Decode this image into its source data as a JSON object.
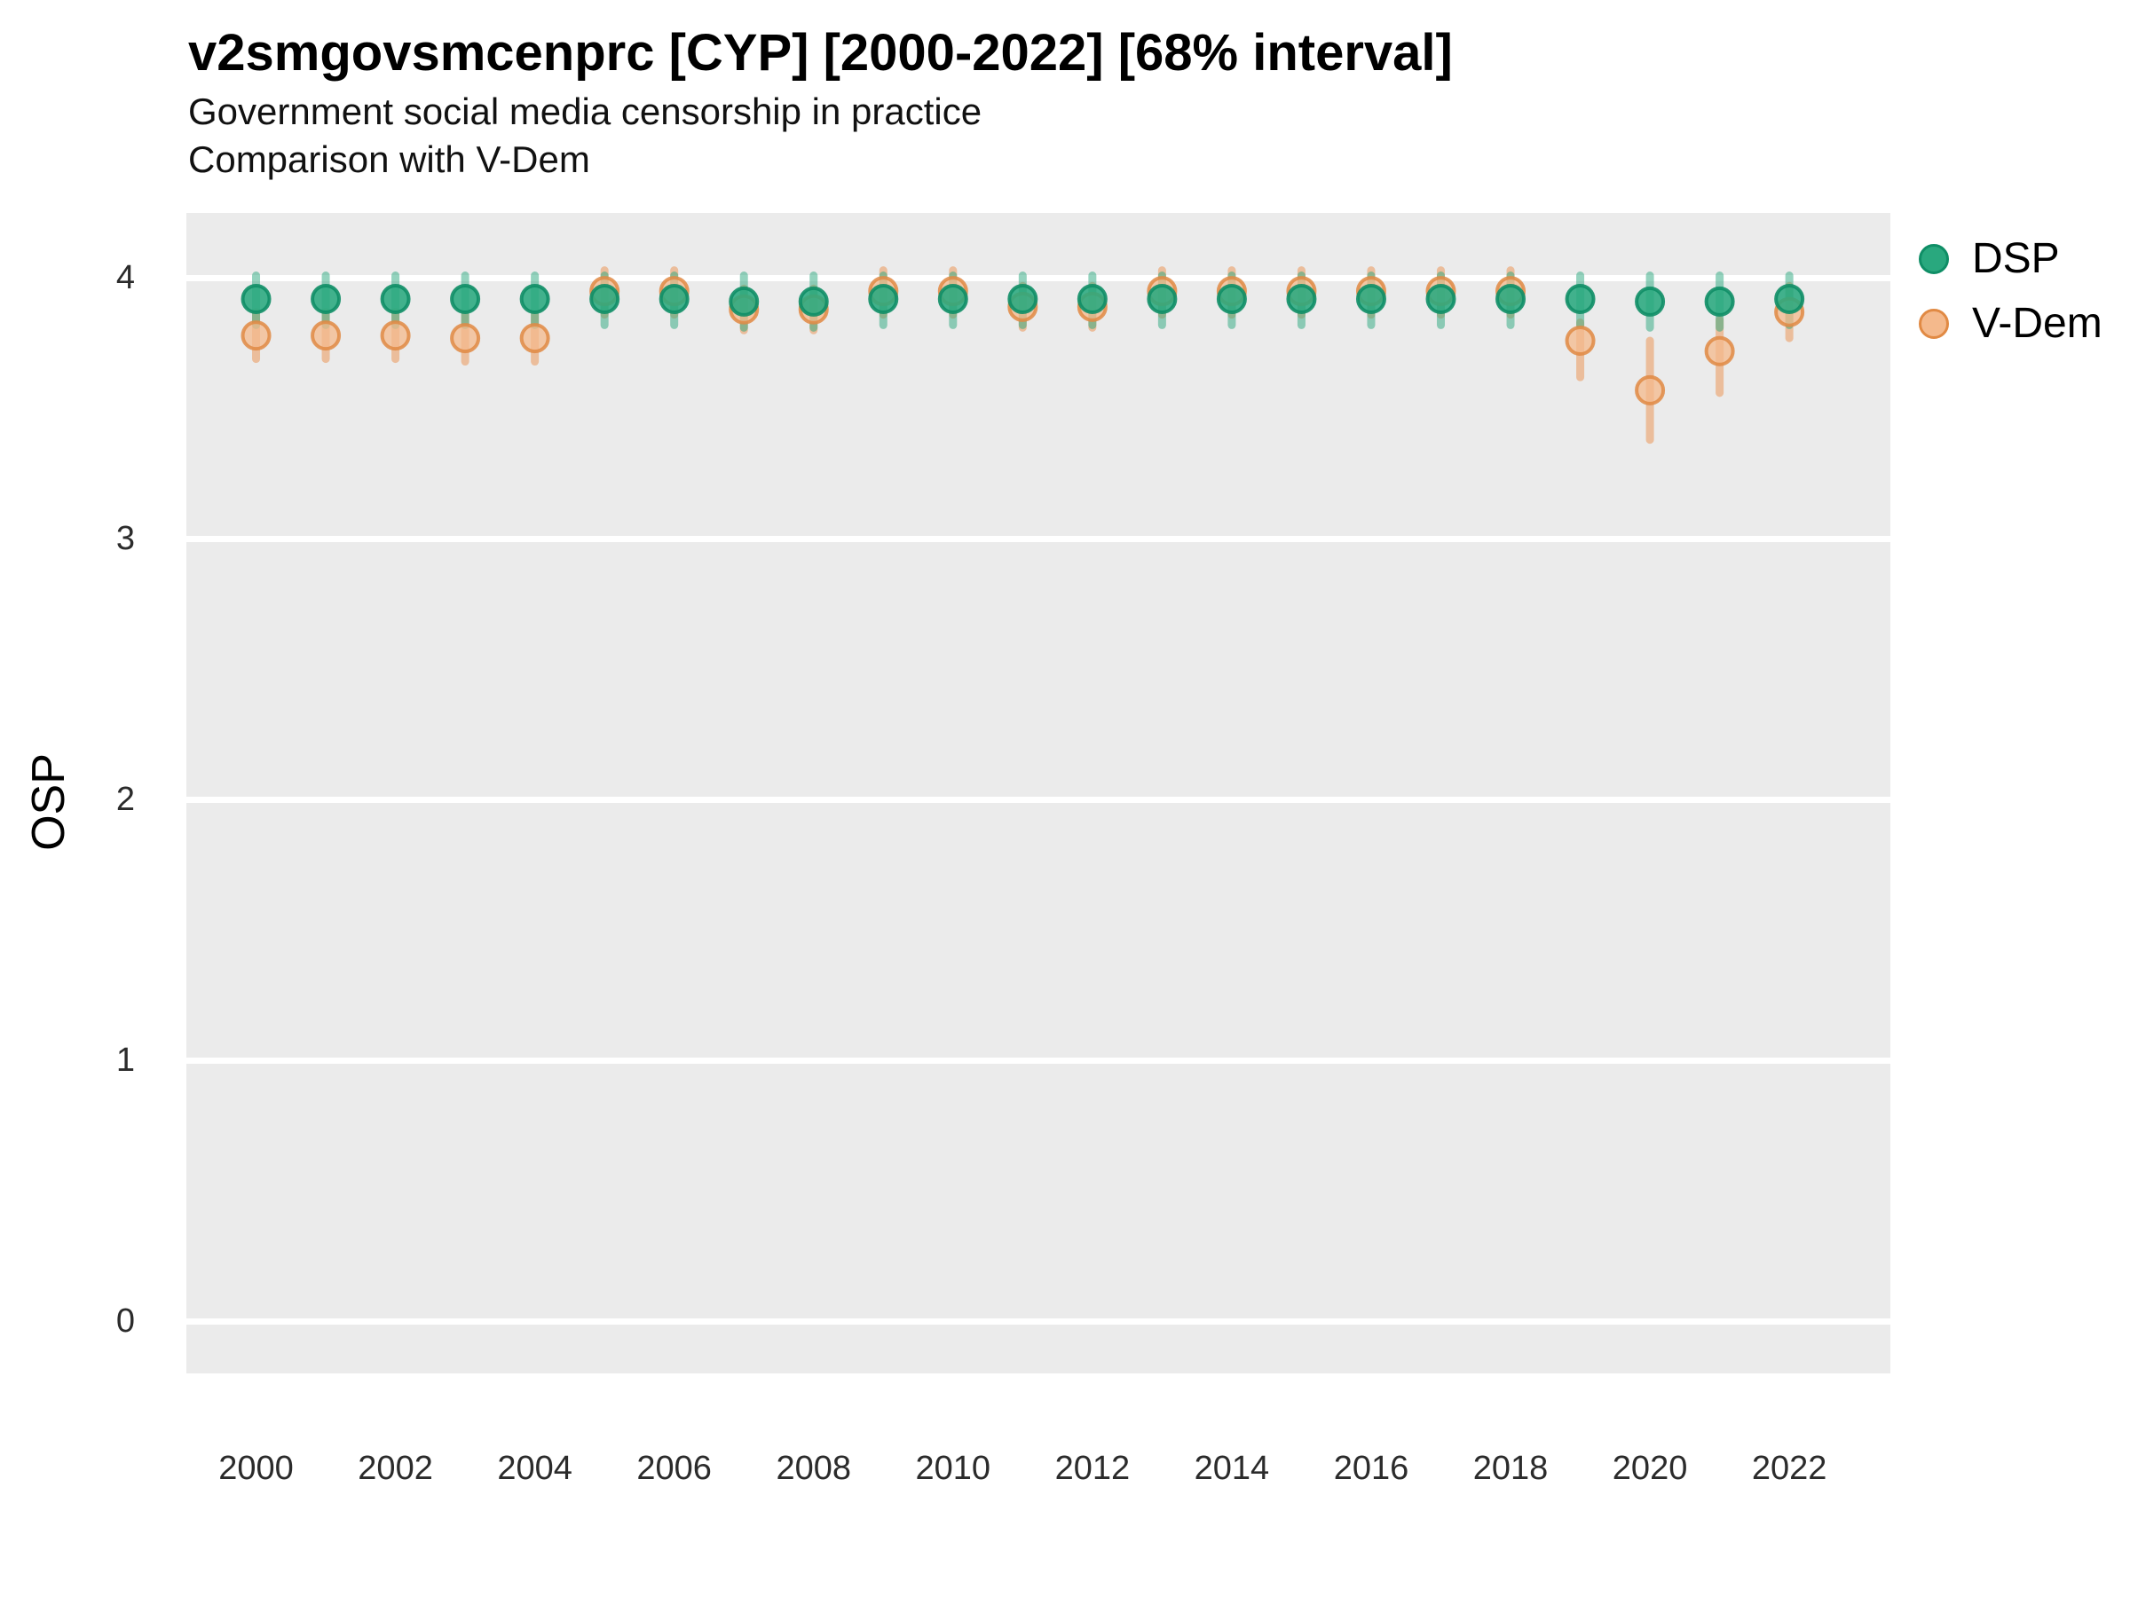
{
  "header": {
    "title": "v2smgovsmcenprc [CYP] [2000-2022] [68% interval]",
    "subtitle": "Government social media censorship in practice",
    "subtitle2": "Comparison with V-Dem"
  },
  "ylabel": "OSP",
  "legend": {
    "items": [
      {
        "label": "DSP"
      },
      {
        "label": "V-Dem"
      }
    ]
  },
  "colors": {
    "dsp_fill": "#29a87e",
    "dsp_stroke": "#0f8e66",
    "dsp_bar": "#2aa87d",
    "vdem_fill": "#f4b98c",
    "vdem_stroke": "#e18a44",
    "vdem_bar": "#eb9e66",
    "panel_bg": "#ebebeb",
    "grid": "#ffffff"
  },
  "chart_data": {
    "type": "scatter",
    "title": "v2smgovsmcenprc [CYP] [2000-2022] [68% interval]",
    "subtitle": "Government social media censorship in practice",
    "comparison": "Comparison with V-Dem",
    "xlabel": "",
    "ylabel": "OSP",
    "interval": "68%",
    "x": [
      2000,
      2001,
      2002,
      2003,
      2004,
      2005,
      2006,
      2007,
      2008,
      2009,
      2010,
      2011,
      2012,
      2013,
      2014,
      2015,
      2016,
      2017,
      2018,
      2019,
      2020,
      2021,
      2022
    ],
    "series": [
      {
        "name": "DSP",
        "values": [
          3.92,
          3.92,
          3.92,
          3.92,
          3.92,
          3.92,
          3.92,
          3.91,
          3.91,
          3.92,
          3.92,
          3.92,
          3.92,
          3.92,
          3.92,
          3.92,
          3.92,
          3.92,
          3.92,
          3.92,
          3.91,
          3.91,
          3.92
        ],
        "lo": [
          3.82,
          3.82,
          3.82,
          3.82,
          3.82,
          3.82,
          3.82,
          3.81,
          3.81,
          3.82,
          3.82,
          3.82,
          3.82,
          3.82,
          3.82,
          3.82,
          3.82,
          3.82,
          3.82,
          3.82,
          3.81,
          3.81,
          3.82
        ],
        "hi": [
          4.01,
          4.01,
          4.01,
          4.01,
          4.01,
          4.01,
          4.01,
          4.01,
          4.01,
          4.01,
          4.01,
          4.01,
          4.01,
          4.01,
          4.01,
          4.01,
          4.01,
          4.01,
          4.01,
          4.01,
          4.01,
          4.01,
          4.01
        ]
      },
      {
        "name": "V-Dem",
        "values": [
          3.78,
          3.78,
          3.78,
          3.77,
          3.77,
          3.95,
          3.95,
          3.88,
          3.88,
          3.95,
          3.95,
          3.89,
          3.89,
          3.95,
          3.95,
          3.95,
          3.95,
          3.95,
          3.95,
          3.76,
          3.57,
          3.72,
          3.87
        ],
        "lo": [
          3.69,
          3.69,
          3.69,
          3.68,
          3.68,
          3.86,
          3.86,
          3.8,
          3.8,
          3.86,
          3.86,
          3.81,
          3.81,
          3.86,
          3.86,
          3.86,
          3.86,
          3.86,
          3.86,
          3.62,
          3.38,
          3.56,
          3.77
        ],
        "hi": [
          3.87,
          3.87,
          3.87,
          3.86,
          3.86,
          4.03,
          4.03,
          3.96,
          3.96,
          4.03,
          4.03,
          3.97,
          3.97,
          4.03,
          4.03,
          4.03,
          4.03,
          4.03,
          4.03,
          3.83,
          3.76,
          3.84,
          3.97
        ]
      }
    ],
    "xticks": [
      2000,
      2002,
      2004,
      2006,
      2008,
      2010,
      2012,
      2014,
      2016,
      2018,
      2020,
      2022
    ],
    "yticks": [
      0,
      1,
      2,
      3,
      4
    ],
    "xlim": [
      1999.0,
      2023.45
    ],
    "ylim": [
      -0.2,
      4.25
    ],
    "grid": "horizontal-major-only",
    "legend_position": "top-right-outside"
  }
}
